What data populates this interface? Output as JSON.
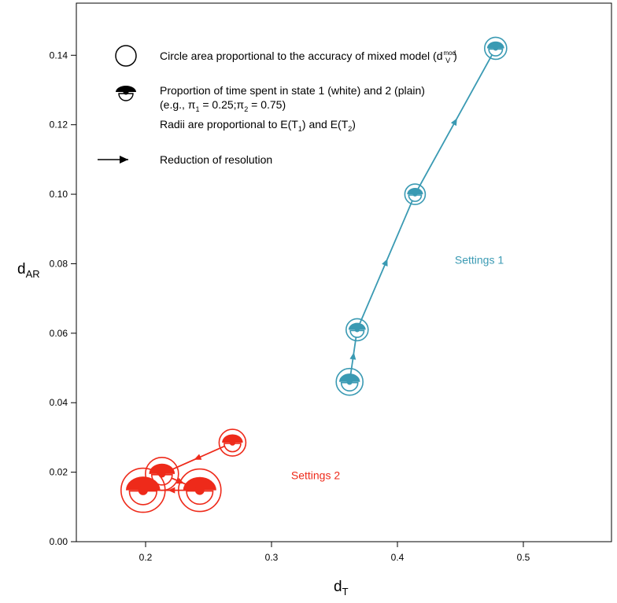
{
  "chart_data": {
    "type": "scatter",
    "xlabel": "d",
    "xlabel_sub": "T",
    "ylabel": "d",
    "ylabel_sub": "AR",
    "xlim": [
      0.145,
      0.57
    ],
    "ylim": [
      0.0,
      0.155
    ],
    "xticks": [
      "0.2",
      "0.3",
      "0.4",
      "0.5"
    ],
    "xtick_values": [
      0.2,
      0.3,
      0.4,
      0.5
    ],
    "yticks": [
      "0.00",
      "0.02",
      "0.04",
      "0.06",
      "0.08",
      "0.10",
      "0.12",
      "0.14"
    ],
    "ytick_values": [
      0.0,
      0.02,
      0.04,
      0.06,
      0.08,
      0.1,
      0.12,
      0.14
    ],
    "grid": false,
    "legend": {
      "placement": "top-left",
      "line1": "Circle area proportional to the accuracy of mixed model (d",
      "line1_sub": "V",
      "line1_sup": "mod",
      "line1_end": ")",
      "line2": "Proportion of time spent in state 1 (white) and 2 (plain)",
      "line3_a": "(e.g., π",
      "line3_sub1": "1",
      "line3_b": " = 0.25;π",
      "line3_sub2": "2",
      "line3_c": " = 0.75)",
      "line4_a": "Radii are proportional to E(T",
      "line4_sub1": "1",
      "line4_b": ") and E(T",
      "line4_sub2": "2",
      "line4_c": ")",
      "line5": "Reduction of resolution"
    },
    "series": [
      {
        "name": "Settings 1",
        "color": "#3a9ab3",
        "label_at": [
          0.465,
          0.08
        ],
        "points": [
          {
            "x": 0.362,
            "y": 0.046
          },
          {
            "x": 0.368,
            "y": 0.061
          },
          {
            "x": 0.414,
            "y": 0.1
          },
          {
            "x": 0.478,
            "y": 0.142
          }
        ]
      },
      {
        "name": "Settings 2",
        "color": "#ee2a1a",
        "label_at": [
          0.335,
          0.018
        ],
        "points": [
          {
            "x": 0.269,
            "y": 0.0285
          },
          {
            "x": 0.213,
            "y": 0.0195
          },
          {
            "x": 0.243,
            "y": 0.0148
          },
          {
            "x": 0.198,
            "y": 0.0148
          }
        ]
      }
    ]
  }
}
